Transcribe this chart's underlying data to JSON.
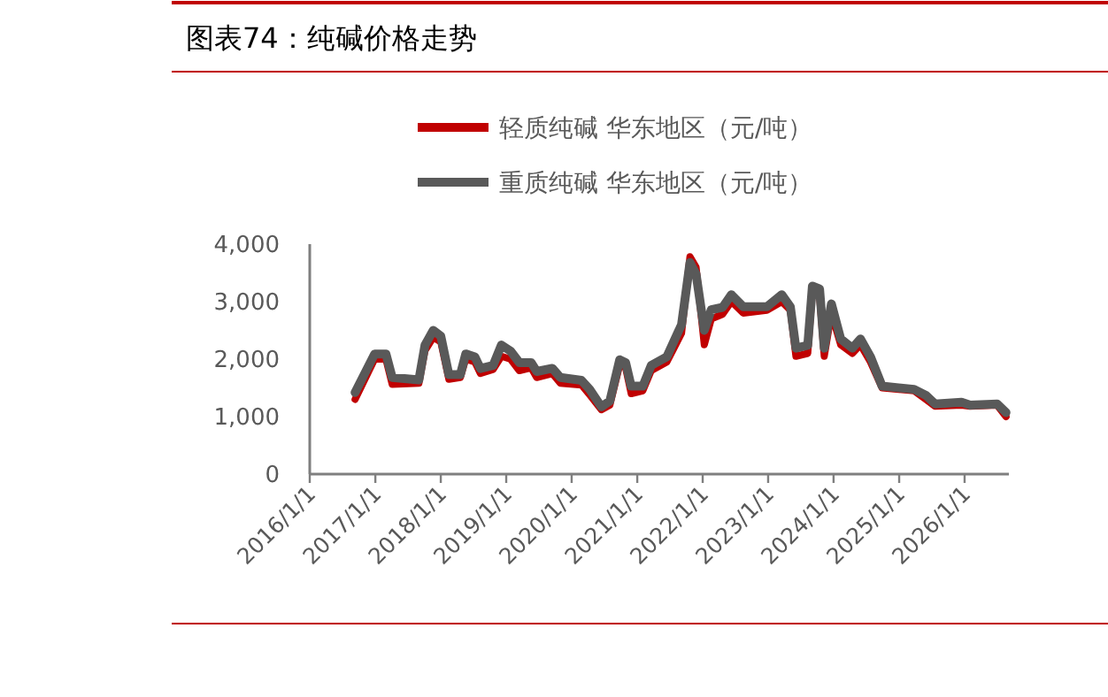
{
  "chart_data": {
    "type": "line",
    "title": "图表74：纯碱价格走势",
    "x": [
      "2016-09-10",
      "2016-12-28",
      "2017-03-01",
      "2017-04-05",
      "2017-09-01",
      "2017-10-05",
      "2017-11-20",
      "2018-01-01",
      "2018-02-15",
      "2018-04-20",
      "2018-05-20",
      "2018-07-10",
      "2018-08-10",
      "2018-10-20",
      "2018-12-05",
      "2019-01-25",
      "2019-03-15",
      "2019-05-20",
      "2019-06-20",
      "2019-09-15",
      "2019-10-30",
      "2020-02-25",
      "2020-04-10",
      "2020-06-15",
      "2020-08-01",
      "2020-09-25",
      "2020-10-28",
      "2020-11-28",
      "2021-02-01",
      "2021-03-20",
      "2021-06-15",
      "2021-09-05",
      "2021-10-22",
      "2021-11-25",
      "2022-01-10",
      "2022-02-18",
      "2022-04-22",
      "2022-06-10",
      "2022-08-15",
      "2022-12-25",
      "2023-03-18",
      "2023-05-05",
      "2023-06-05",
      "2023-08-10",
      "2023-09-05",
      "2023-10-15",
      "2023-11-10",
      "2023-12-20",
      "2024-02-10",
      "2024-04-15",
      "2024-05-30",
      "2024-07-25",
      "2024-09-28",
      "2025-03-25",
      "2025-05-30",
      "2025-07-20",
      "2025-12-15",
      "2026-02-01",
      "2026-07-01",
      "2026-08-20"
    ],
    "series": [
      {
        "name": "轻质纯碱 华东地区（元/吨）",
        "color": "#c00000",
        "values": [
          1300,
          2000,
          2000,
          1560,
          1580,
          2150,
          2380,
          2300,
          1650,
          1680,
          2000,
          1950,
          1750,
          1820,
          2050,
          2000,
          1800,
          1850,
          1680,
          1750,
          1580,
          1550,
          1380,
          1120,
          1200,
          1900,
          1850,
          1400,
          1450,
          1800,
          1950,
          2450,
          3780,
          3600,
          2250,
          2700,
          2780,
          3000,
          2800,
          2850,
          3000,
          2850,
          2050,
          2100,
          3200,
          3100,
          2050,
          2800,
          2250,
          2100,
          2250,
          1950,
          1500,
          1450,
          1300,
          1180,
          1200,
          1180,
          1200,
          1000
        ]
      },
      {
        "name": "重质纯碱 华东地区（元/吨）",
        "color": "#595959",
        "values": [
          1420,
          2090,
          2090,
          1680,
          1640,
          2245,
          2500,
          2400,
          1730,
          1730,
          2090,
          2040,
          1835,
          1890,
          2245,
          2140,
          1940,
          1940,
          1785,
          1840,
          1680,
          1630,
          1475,
          1170,
          1270,
          1990,
          1940,
          1530,
          1530,
          1890,
          2040,
          2600,
          3680,
          3480,
          2500,
          2860,
          2900,
          3120,
          2910,
          2910,
          3120,
          2910,
          2190,
          2240,
          3270,
          3220,
          2190,
          2960,
          2350,
          2190,
          2350,
          2040,
          1530,
          1475,
          1370,
          1220,
          1250,
          1200,
          1220,
          1070
        ]
      }
    ],
    "xlim": [
      "2016-01-01",
      "2026-09-05"
    ],
    "xticks": [
      {
        "value": "2016-01-01",
        "label": "2016/1/1"
      },
      {
        "value": "2017-01-01",
        "label": "2017/1/1"
      },
      {
        "value": "2018-01-01",
        "label": "2018/1/1"
      },
      {
        "value": "2019-01-01",
        "label": "2019/1/1"
      },
      {
        "value": "2020-01-01",
        "label": "2020/1/1"
      },
      {
        "value": "2021-01-01",
        "label": "2021/1/1"
      },
      {
        "value": "2022-01-01",
        "label": "2022/1/1"
      },
      {
        "value": "2023-01-01",
        "label": "2023/1/1"
      },
      {
        "value": "2024-01-01",
        "label": "2024/1/1"
      },
      {
        "value": "2025-01-01",
        "label": "2025/1/1"
      },
      {
        "value": "2026-01-01",
        "label": "2026/1/1"
      }
    ],
    "ylim": [
      0,
      4000
    ],
    "yticks": [
      0,
      {
        "value": 1000,
        "label": "1,000"
      },
      {
        "value": 2000,
        "label": "2,000"
      },
      {
        "value": 3000,
        "label": "3,000"
      },
      {
        "value": 4000,
        "label": "4,000"
      }
    ],
    "legend": "top"
  }
}
